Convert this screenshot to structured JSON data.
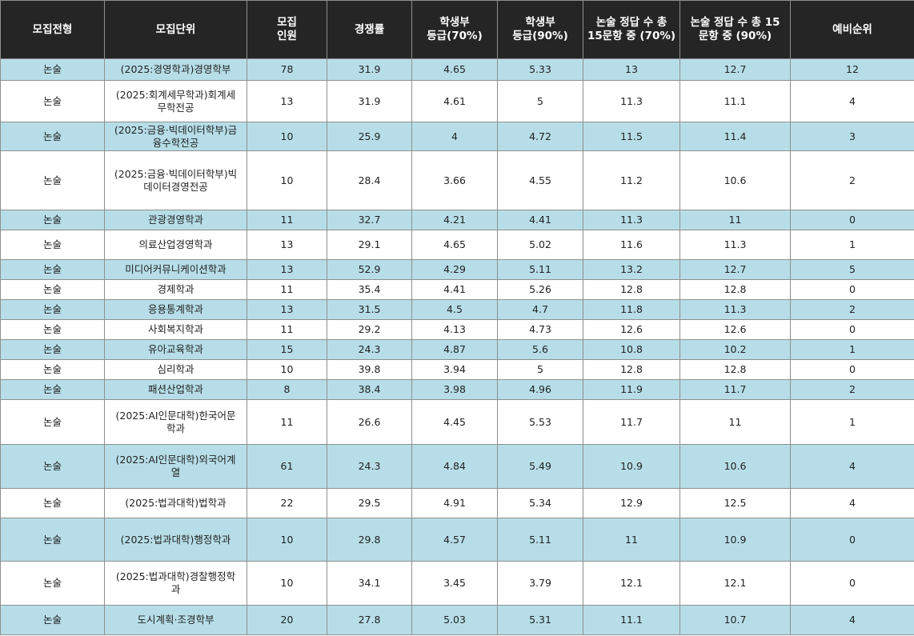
{
  "headers": [
    "모집전형",
    "모집단위",
    "모집\n인원",
    "경쟁률",
    "학생부\n등급(70%)",
    "학생부\n등급(90%)",
    "논술 정답 수 총\n15문항 중 (70%)",
    "논술 정답 수 총 15\n문항 중 (90%)",
    "예비순위"
  ],
  "rows": [
    [
      "논술",
      "(2025:경영학과)경영학부",
      "78",
      "31.9",
      "4.65",
      "5.33",
      "13",
      "12.7",
      "12"
    ],
    [
      "논술",
      "(2025:회계세무학과)회계세\n무학전공",
      "13",
      "31.9",
      "4.61",
      "5",
      "11.3",
      "11.1",
      "4"
    ],
    [
      "논술",
      "(2025:금융·빅데이터학부)금\n융수학전공",
      "10",
      "25.9",
      "4",
      "4.72",
      "11.5",
      "11.4",
      "3"
    ],
    [
      "논술",
      "(2025:금융·빅데이터학부)빅\n데이터경영전공",
      "10",
      "28.4",
      "3.66",
      "4.55",
      "11.2",
      "10.6",
      "2"
    ],
    [
      "논술",
      "관광경영학과",
      "11",
      "32.7",
      "4.21",
      "4.41",
      "11.3",
      "11",
      "0"
    ],
    [
      "논술",
      "의료산업경영학과",
      "13",
      "29.1",
      "4.65",
      "5.02",
      "11.6",
      "11.3",
      "1"
    ],
    [
      "논술",
      "미디어커뮤니케이션학과",
      "13",
      "52.9",
      "4.29",
      "5.11",
      "13.2",
      "12.7",
      "5"
    ],
    [
      "논술",
      "경제학과",
      "11",
      "35.4",
      "4.41",
      "5.26",
      "12.8",
      "12.8",
      "0"
    ],
    [
      "논술",
      "응용통계학과",
      "13",
      "31.5",
      "4.5",
      "4.7",
      "11.8",
      "11.3",
      "2"
    ],
    [
      "논술",
      "사회복지학과",
      "11",
      "29.2",
      "4.13",
      "4.73",
      "12.6",
      "12.6",
      "0"
    ],
    [
      "논술",
      "유아교육학과",
      "15",
      "24.3",
      "4.87",
      "5.6",
      "10.8",
      "10.2",
      "1"
    ],
    [
      "논술",
      "심리학과",
      "10",
      "39.8",
      "3.94",
      "5",
      "12.8",
      "12.8",
      "0"
    ],
    [
      "논술",
      "패션산업학과",
      "8",
      "38.4",
      "3.98",
      "4.96",
      "11.9",
      "11.7",
      "2"
    ],
    [
      "논술",
      "(2025:AI인문대학)한국어문\n학과",
      "11",
      "26.6",
      "4.45",
      "5.53",
      "11.7",
      "11",
      "1"
    ],
    [
      "논술",
      "(2025:AI인문대학)외국어계\n열",
      "61",
      "24.3",
      "4.84",
      "5.49",
      "10.9",
      "10.6",
      "4"
    ],
    [
      "논술",
      "(2025:법과대학)법학과",
      "22",
      "29.5",
      "4.91",
      "5.34",
      "12.9",
      "12.5",
      "4"
    ],
    [
      "논술",
      "(2025:법과대학)행정학과",
      "10",
      "29.8",
      "4.57",
      "5.11",
      "11",
      "10.9",
      "0"
    ],
    [
      "논술",
      "(2025:법과대학)경찰행정학\n과",
      "10",
      "34.1",
      "3.45",
      "3.79",
      "12.1",
      "12.1",
      "0"
    ],
    [
      "논술",
      "도시계획·조경학부",
      "20",
      "27.8",
      "5.03",
      "5.31",
      "11.1",
      "10.7",
      "4"
    ]
  ],
  "colors": {
    "header_bg": "#252525",
    "alt_row_bg": "#b7dee8",
    "plain_row_bg": "#ffffff"
  }
}
